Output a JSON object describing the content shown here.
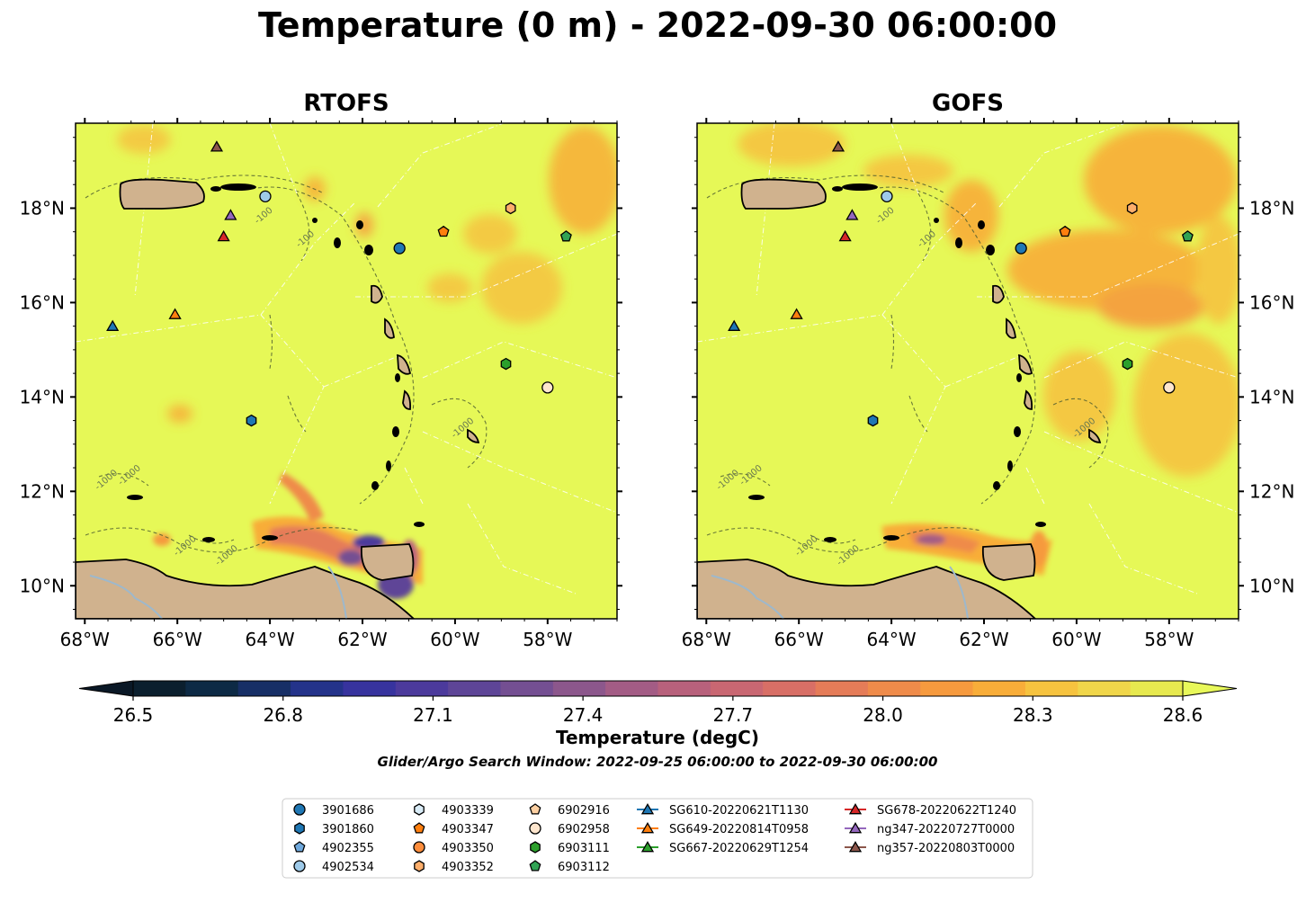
{
  "title": "Temperature (0 m) - 2022-09-30 06:00:00",
  "panels": [
    {
      "title": "RTOFS",
      "model": "rtofs"
    },
    {
      "title": "GOFS",
      "model": "gofs"
    }
  ],
  "map": {
    "lon_range": [
      -68.2,
      -56.5
    ],
    "lat_range": [
      9.3,
      19.8
    ],
    "lon_ticks": [
      -68,
      -66,
      -64,
      -62,
      -60,
      -58
    ],
    "lon_tick_labels": [
      "68°W",
      "66°W",
      "64°W",
      "62°W",
      "60°W",
      "58°W"
    ],
    "lat_ticks": [
      10,
      12,
      14,
      16,
      18
    ],
    "lat_tick_labels": [
      "10°N",
      "12°N",
      "14°N",
      "16°N",
      "18°N"
    ],
    "contour_labels": [
      "-100",
      "-1000"
    ]
  },
  "colorbar": {
    "label": "Temperature (degC)",
    "min": 26.4,
    "max": 28.6,
    "ticks": [
      26.5,
      26.8,
      27.1,
      27.4,
      27.7,
      28.0,
      28.3,
      28.6
    ],
    "tick_labels": [
      "26.5",
      "26.8",
      "27.1",
      "27.4",
      "27.7",
      "28.0",
      "28.3",
      "28.6"
    ],
    "colors": [
      "#0b1f2e",
      "#0d2a45",
      "#172f66",
      "#24338a",
      "#37339e",
      "#4c3a9c",
      "#5e4597",
      "#744f92",
      "#8c578c",
      "#a35c85",
      "#b8617c",
      "#c96772",
      "#d86f66",
      "#e57c58",
      "#ef8b4a",
      "#f69a3e",
      "#f8ad39",
      "#f6c33f",
      "#f0d64a",
      "#e7e94f"
    ],
    "extend_under_color": "#0a1826",
    "extend_over_color": "#e8f85a"
  },
  "search_window": "Glider/Argo Search Window: 2022-09-25 06:00:00 to 2022-09-30 06:00:00",
  "observations": [
    {
      "id": "3901686",
      "marker": "circle",
      "color": "#1f77b4",
      "lon": -61.2,
      "lat": 17.15
    },
    {
      "id": "3901860",
      "marker": "hexagon",
      "color": "#1f77b4",
      "lon": -64.4,
      "lat": 13.5
    },
    {
      "id": "4902355",
      "marker": "pentagon",
      "color": "#6fa8dc",
      "lon": null,
      "lat": null
    },
    {
      "id": "4902534",
      "marker": "circle",
      "color": "#9ecae9",
      "lon": -64.1,
      "lat": 18.25
    },
    {
      "id": "4903339",
      "marker": "hexagon",
      "color": "#d9ecf7",
      "lon": null,
      "lat": null
    },
    {
      "id": "4903347",
      "marker": "pentagon",
      "color": "#ff7f0e",
      "lon": -60.25,
      "lat": 17.5
    },
    {
      "id": "4903350",
      "marker": "circle",
      "color": "#fd8d3c",
      "lon": null,
      "lat": null
    },
    {
      "id": "4903352",
      "marker": "hexagon",
      "color": "#fdae6b",
      "lon": -58.8,
      "lat": 18.0
    },
    {
      "id": "6902916",
      "marker": "pentagon",
      "color": "#fdd0a2",
      "lon": null,
      "lat": null
    },
    {
      "id": "6902958",
      "marker": "circle",
      "color": "#fee6ce",
      "lon": -58.0,
      "lat": 14.2
    },
    {
      "id": "6903111",
      "marker": "hexagon",
      "color": "#2ca02c",
      "lon": -58.9,
      "lat": 14.7
    },
    {
      "id": "6903112",
      "marker": "pentagon",
      "color": "#31a354",
      "lon": -57.6,
      "lat": 17.4
    },
    {
      "id": "SG610-20220621T1130",
      "marker": "triangle",
      "color": "#1f77b4",
      "lon": -67.4,
      "lat": 15.5
    },
    {
      "id": "SG649-20220814T0958",
      "marker": "triangle",
      "color": "#ff7f0e",
      "lon": -66.05,
      "lat": 15.75
    },
    {
      "id": "SG667-20220629T1254",
      "marker": "triangle",
      "color": "#2ca02c",
      "lon": null,
      "lat": null
    },
    {
      "id": "SG678-20220622T1240",
      "marker": "triangle",
      "color": "#d62728",
      "lon": -65.0,
      "lat": 17.4
    },
    {
      "id": "ng347-20220727T0000",
      "marker": "triangle",
      "color": "#9467bd",
      "lon": -64.85,
      "lat": 17.85
    },
    {
      "id": "ng357-20220803T0000",
      "marker": "triangle",
      "color": "#8c564b",
      "lon": -65.15,
      "lat": 19.3
    }
  ]
}
